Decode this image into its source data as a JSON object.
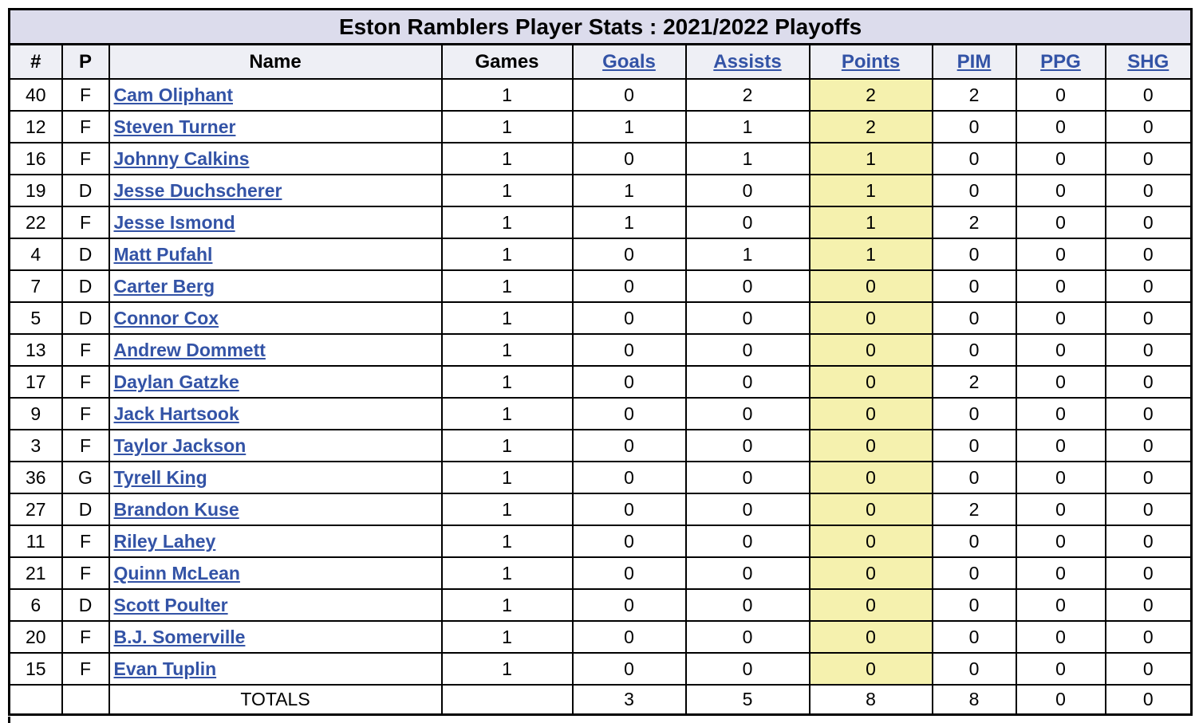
{
  "title": "Eston Ramblers Player Stats : 2021/2022 Playoffs",
  "colors": {
    "title_bg": "#dcdcec",
    "header_bg": "#eeeff5",
    "points_highlight": "#f5f1ae",
    "link_blue": "#3353a6",
    "border": "#000000"
  },
  "table": {
    "columns": [
      {
        "key": "num",
        "label": "#",
        "type": "plain"
      },
      {
        "key": "pos",
        "label": "P",
        "type": "plain"
      },
      {
        "key": "name",
        "label": "Name",
        "type": "plain"
      },
      {
        "key": "games",
        "label": "Games",
        "type": "plain"
      },
      {
        "key": "goals",
        "label": "Goals",
        "type": "link"
      },
      {
        "key": "assists",
        "label": "Assists",
        "type": "link"
      },
      {
        "key": "points",
        "label": "Points",
        "type": "link"
      },
      {
        "key": "pim",
        "label": "PIM",
        "type": "link"
      },
      {
        "key": "ppg",
        "label": "PPG",
        "type": "link"
      },
      {
        "key": "shg",
        "label": "SHG",
        "type": "link"
      }
    ],
    "rows": [
      {
        "num": "40",
        "pos": "F",
        "name": "Cam Oliphant",
        "games": "1",
        "goals": "0",
        "assists": "2",
        "points": "2",
        "pim": "2",
        "ppg": "0",
        "shg": "0"
      },
      {
        "num": "12",
        "pos": "F",
        "name": "Steven Turner",
        "games": "1",
        "goals": "1",
        "assists": "1",
        "points": "2",
        "pim": "0",
        "ppg": "0",
        "shg": "0"
      },
      {
        "num": "16",
        "pos": "F",
        "name": "Johnny Calkins",
        "games": "1",
        "goals": "0",
        "assists": "1",
        "points": "1",
        "pim": "0",
        "ppg": "0",
        "shg": "0"
      },
      {
        "num": "19",
        "pos": "D",
        "name": "Jesse Duchscherer",
        "games": "1",
        "goals": "1",
        "assists": "0",
        "points": "1",
        "pim": "0",
        "ppg": "0",
        "shg": "0"
      },
      {
        "num": "22",
        "pos": "F",
        "name": "Jesse Ismond",
        "games": "1",
        "goals": "1",
        "assists": "0",
        "points": "1",
        "pim": "2",
        "ppg": "0",
        "shg": "0"
      },
      {
        "num": "4",
        "pos": "D",
        "name": "Matt Pufahl",
        "games": "1",
        "goals": "0",
        "assists": "1",
        "points": "1",
        "pim": "0",
        "ppg": "0",
        "shg": "0"
      },
      {
        "num": "7",
        "pos": "D",
        "name": "Carter Berg",
        "games": "1",
        "goals": "0",
        "assists": "0",
        "points": "0",
        "pim": "0",
        "ppg": "0",
        "shg": "0"
      },
      {
        "num": "5",
        "pos": "D",
        "name": "Connor Cox",
        "games": "1",
        "goals": "0",
        "assists": "0",
        "points": "0",
        "pim": "0",
        "ppg": "0",
        "shg": "0"
      },
      {
        "num": "13",
        "pos": "F",
        "name": "Andrew Dommett",
        "games": "1",
        "goals": "0",
        "assists": "0",
        "points": "0",
        "pim": "0",
        "ppg": "0",
        "shg": "0"
      },
      {
        "num": "17",
        "pos": "F",
        "name": "Daylan Gatzke",
        "games": "1",
        "goals": "0",
        "assists": "0",
        "points": "0",
        "pim": "2",
        "ppg": "0",
        "shg": "0"
      },
      {
        "num": "9",
        "pos": "F",
        "name": "Jack Hartsook",
        "games": "1",
        "goals": "0",
        "assists": "0",
        "points": "0",
        "pim": "0",
        "ppg": "0",
        "shg": "0"
      },
      {
        "num": "3",
        "pos": "F",
        "name": "Taylor Jackson",
        "games": "1",
        "goals": "0",
        "assists": "0",
        "points": "0",
        "pim": "0",
        "ppg": "0",
        "shg": "0"
      },
      {
        "num": "36",
        "pos": "G",
        "name": "Tyrell King",
        "games": "1",
        "goals": "0",
        "assists": "0",
        "points": "0",
        "pim": "0",
        "ppg": "0",
        "shg": "0"
      },
      {
        "num": "27",
        "pos": "D",
        "name": "Brandon Kuse",
        "games": "1",
        "goals": "0",
        "assists": "0",
        "points": "0",
        "pim": "2",
        "ppg": "0",
        "shg": "0"
      },
      {
        "num": "11",
        "pos": "F",
        "name": "Riley Lahey",
        "games": "1",
        "goals": "0",
        "assists": "0",
        "points": "0",
        "pim": "0",
        "ppg": "0",
        "shg": "0"
      },
      {
        "num": "21",
        "pos": "F",
        "name": "Quinn McLean",
        "games": "1",
        "goals": "0",
        "assists": "0",
        "points": "0",
        "pim": "0",
        "ppg": "0",
        "shg": "0"
      },
      {
        "num": "6",
        "pos": "D",
        "name": "Scott Poulter",
        "games": "1",
        "goals": "0",
        "assists": "0",
        "points": "0",
        "pim": "0",
        "ppg": "0",
        "shg": "0"
      },
      {
        "num": "20",
        "pos": "F",
        "name": "B.J. Somerville",
        "games": "1",
        "goals": "0",
        "assists": "0",
        "points": "0",
        "pim": "0",
        "ppg": "0",
        "shg": "0"
      },
      {
        "num": "15",
        "pos": "F",
        "name": "Evan Tuplin",
        "games": "1",
        "goals": "0",
        "assists": "0",
        "points": "0",
        "pim": "0",
        "ppg": "0",
        "shg": "0"
      }
    ],
    "totals": {
      "num": "",
      "pos": "",
      "label": "TOTALS",
      "games": "",
      "goals": "3",
      "assists": "5",
      "points": "8",
      "pim": "8",
      "ppg": "0",
      "shg": "0"
    }
  }
}
